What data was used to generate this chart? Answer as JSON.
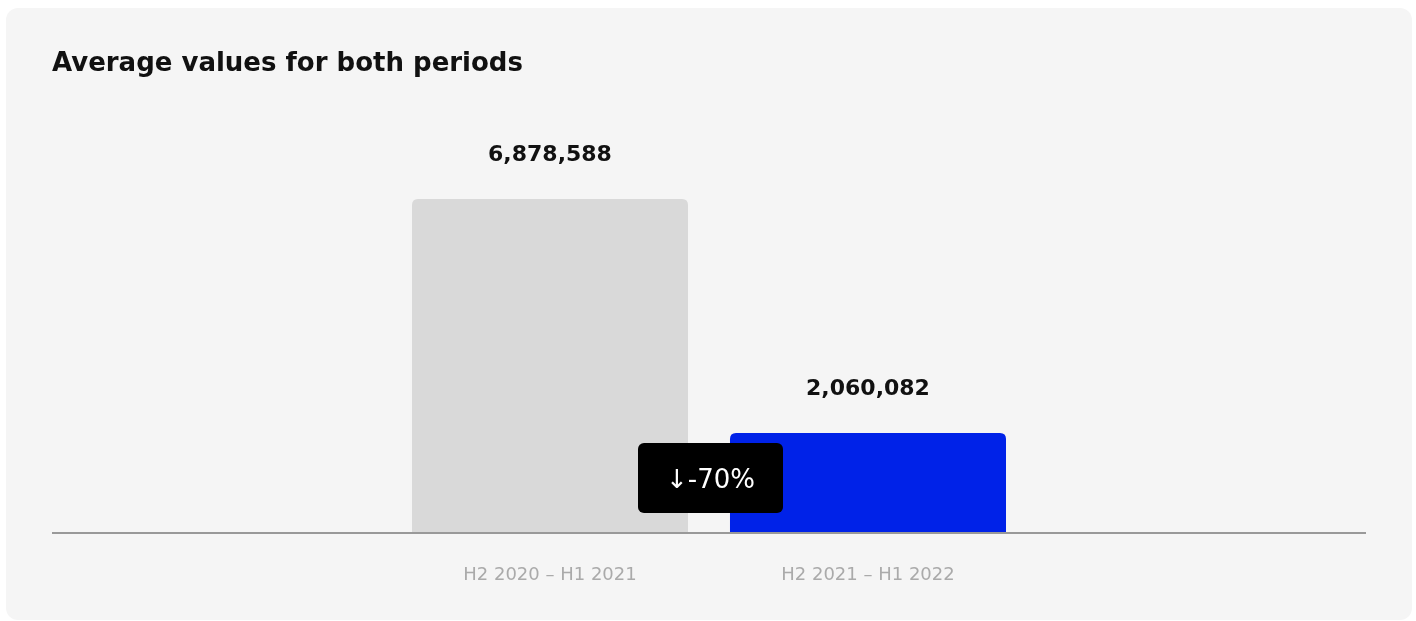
{
  "chart_data": {
    "type": "bar",
    "title": "Average values for both periods",
    "categories": [
      "H2 2020 – H1 2021",
      "H2 2021 – H1 2022"
    ],
    "values": [
      6878588,
      2060082
    ],
    "value_labels": [
      "6,878,588",
      "2,060,082"
    ],
    "colors": [
      "#d9d9d9",
      "#0022e8"
    ],
    "annotations": [
      "↓-70%"
    ]
  }
}
